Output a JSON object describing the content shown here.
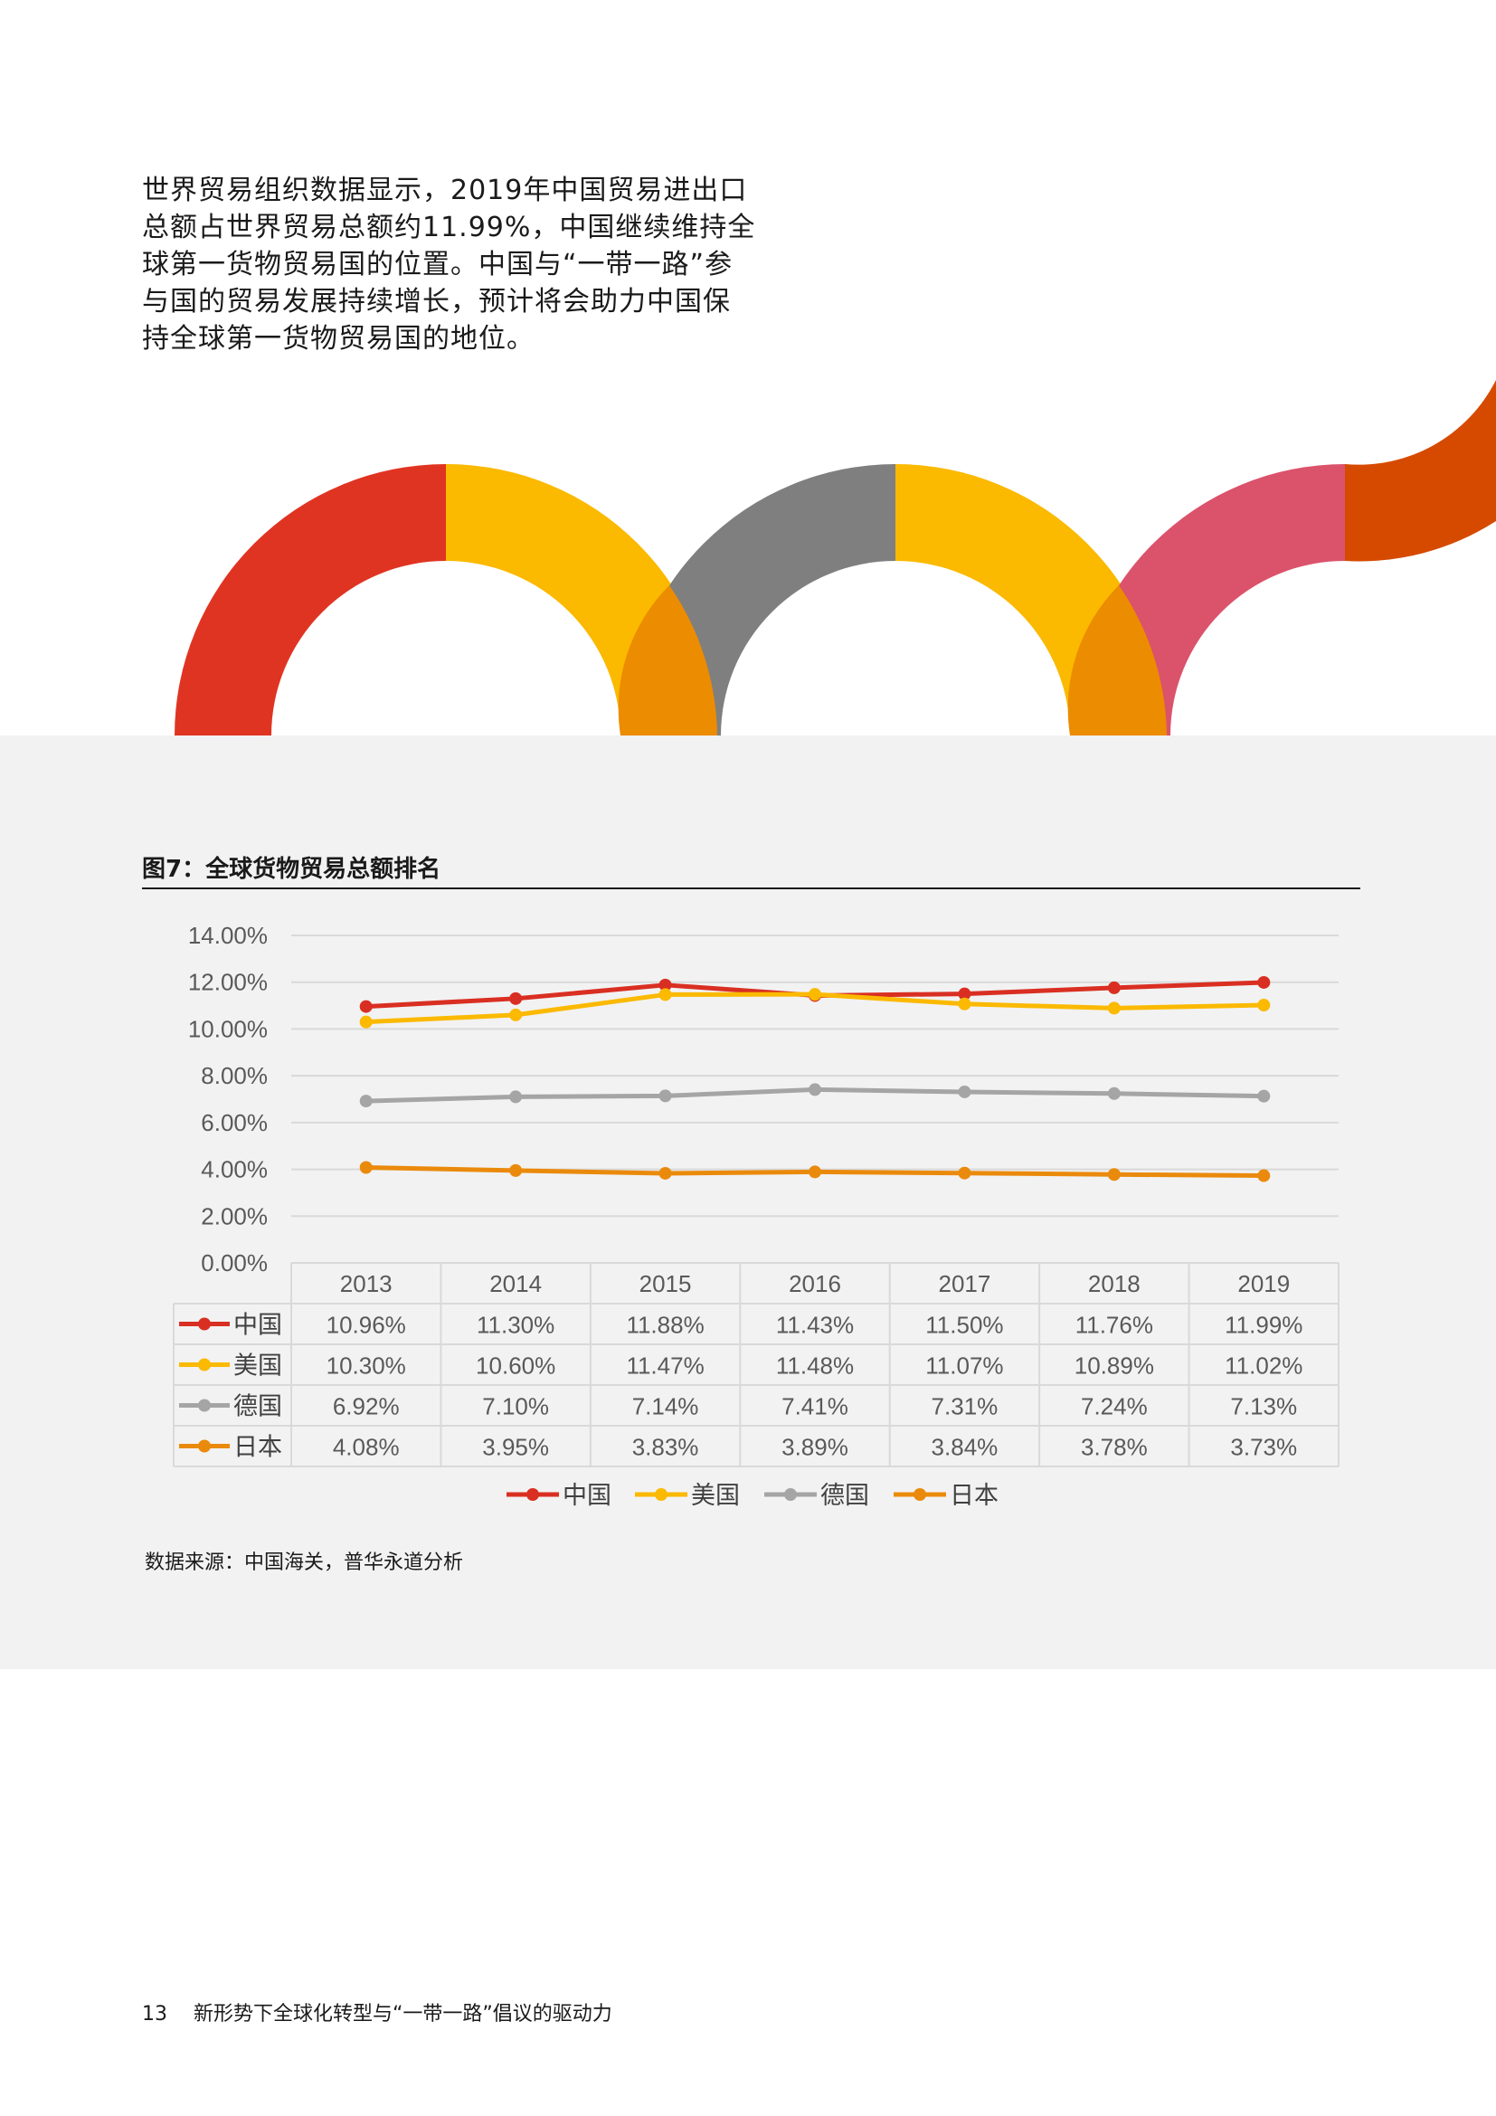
{
  "intro_text": "世界贸易组织数据显示，2019年中国贸易进出口总额占世界贸易总额约11.99%，中国继续维持全球第一货物贸易国的位置。中国与“一带一路”参与国的贸易发展持续增长，预计将会助力中国保持全球第一货物贸易国的地位。",
  "figure_title": "图7：全球货物贸易总额排名",
  "source_note": "数据来源：中国海关，普华永道分析",
  "footer": {
    "page_number": "13",
    "doc_title": "新形势下全球化转型与“一带一路”倡议的驱动力"
  },
  "colors": {
    "china": "#d92f22",
    "usa": "#fbb900",
    "germany": "#a5a5a5",
    "japan": "#ea8a0c",
    "arc_red": "#e03422",
    "arc_yellow": "#fbb900",
    "arc_gray": "#7f7f7f",
    "arc_pink": "#db526b",
    "arc_orange": "#d64a00",
    "arc_overlap": "#ec8c00"
  },
  "chart_data": {
    "type": "line",
    "title": "图7：全球货物贸易总额排名",
    "xlabel": "",
    "ylabel": "",
    "categories": [
      "2013",
      "2014",
      "2015",
      "2016",
      "2017",
      "2018",
      "2019"
    ],
    "ylim": [
      0,
      14
    ],
    "yticks": [
      "0.00%",
      "2.00%",
      "4.00%",
      "6.00%",
      "8.00%",
      "10.00%",
      "12.00%",
      "14.00%"
    ],
    "grid": true,
    "legend": "bottom",
    "data_table": true,
    "series": [
      {
        "name": "中国",
        "color": "#d92f22",
        "values": [
          10.96,
          11.3,
          11.88,
          11.43,
          11.5,
          11.76,
          11.99
        ],
        "labels": [
          "10.96%",
          "11.30%",
          "11.88%",
          "11.43%",
          "11.50%",
          "11.76%",
          "11.99%"
        ]
      },
      {
        "name": "美国",
        "color": "#fbb900",
        "values": [
          10.3,
          10.6,
          11.47,
          11.48,
          11.07,
          10.89,
          11.02
        ],
        "labels": [
          "10.30%",
          "10.60%",
          "11.47%",
          "11.48%",
          "11.07%",
          "10.89%",
          "11.02%"
        ]
      },
      {
        "name": "德国",
        "color": "#a5a5a5",
        "values": [
          6.92,
          7.1,
          7.14,
          7.41,
          7.31,
          7.24,
          7.13
        ],
        "labels": [
          "6.92%",
          "7.10%",
          "7.14%",
          "7.41%",
          "7.31%",
          "7.24%",
          "7.13%"
        ]
      },
      {
        "name": "日本",
        "color": "#ea8a0c",
        "values": [
          4.08,
          3.95,
          3.83,
          3.89,
          3.84,
          3.78,
          3.73
        ],
        "labels": [
          "4.08%",
          "3.95%",
          "3.83%",
          "3.89%",
          "3.84%",
          "3.78%",
          "3.73%"
        ]
      }
    ]
  }
}
